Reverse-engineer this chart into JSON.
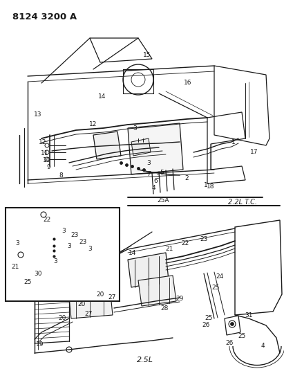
{
  "title": "8124 3200 A",
  "bg_color": "#ffffff",
  "line_color": "#1a1a1a",
  "label_color": "#1a1a1a",
  "title_fontsize": 10,
  "label_fontsize": 6.5,
  "label_2_2L": "2.2L T.C.",
  "label_2_5L": "2.5L",
  "figsize": [
    4.11,
    5.33
  ],
  "dpi": 100
}
